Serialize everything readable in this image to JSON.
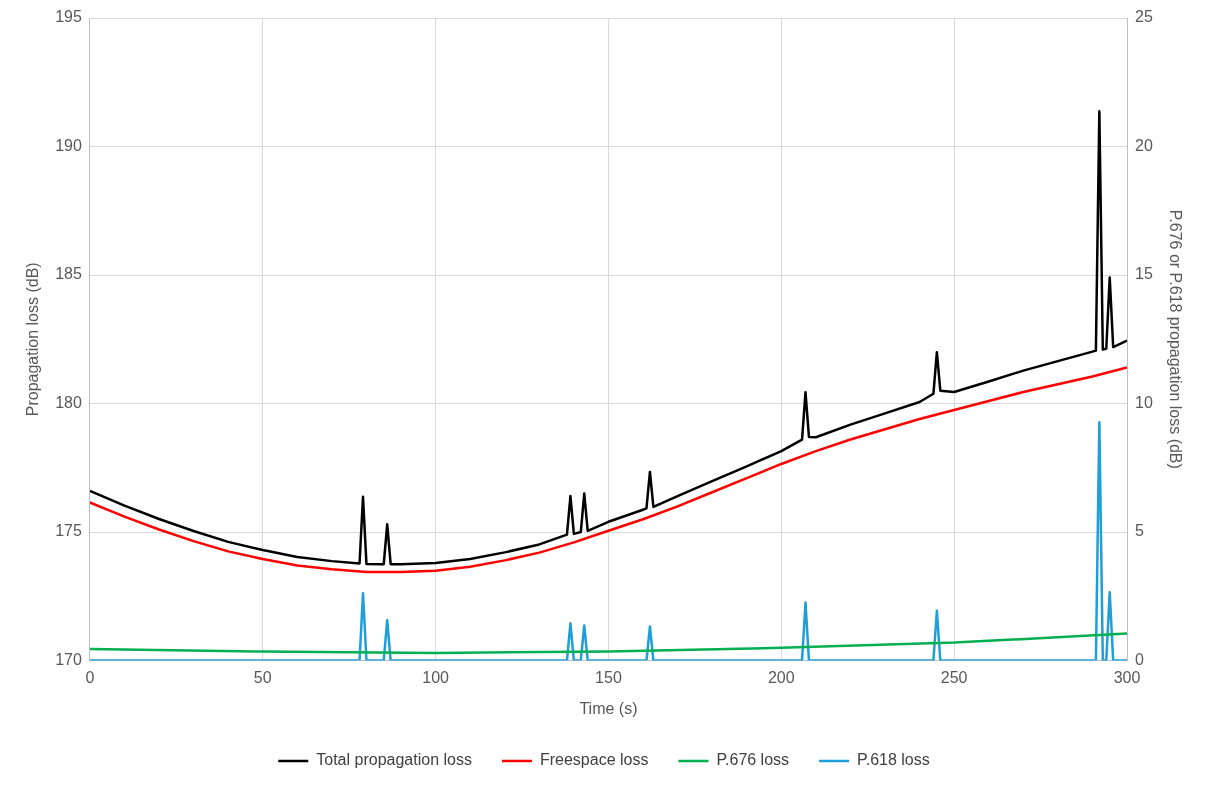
{
  "chart_data": {
    "type": "line",
    "xlabel": "Time (s)",
    "ylabel": "Propagation loss (dB)",
    "y2label": "P.676 or P.618 propagation loss (dB)",
    "xlim": [
      0,
      300
    ],
    "xticks": [
      0,
      50,
      100,
      150,
      200,
      250,
      300
    ],
    "ylim": [
      170,
      195
    ],
    "yticks": [
      170,
      175,
      180,
      185,
      190,
      195
    ],
    "y2lim": [
      0,
      25
    ],
    "y2ticks": [
      0,
      5,
      10,
      15,
      20,
      25
    ],
    "grid": true,
    "legend": "bottom",
    "marker": "none",
    "line_style": "solid",
    "series": [
      {
        "name": "Total propagation loss",
        "color": "#000000",
        "x": [
          0,
          10,
          20,
          30,
          40,
          50,
          60,
          70,
          78,
          79,
          80,
          85,
          86,
          87,
          90,
          100,
          110,
          120,
          130,
          138,
          139,
          140,
          142,
          143,
          144,
          150,
          160,
          161,
          162,
          163,
          170,
          180,
          190,
          200,
          206,
          207,
          208,
          210,
          220,
          230,
          240,
          244,
          245,
          246,
          250,
          260,
          270,
          280,
          290,
          291,
          292,
          293,
          294,
          295,
          296,
          300
        ],
        "values": [
          176.6,
          176.03,
          175.51,
          175.04,
          174.62,
          174.3,
          174.03,
          173.87,
          173.78,
          176.37,
          173.76,
          173.75,
          175.3,
          173.75,
          173.75,
          173.8,
          173.95,
          174.21,
          174.52,
          174.9,
          176.4,
          174.93,
          175.0,
          176.5,
          175.05,
          175.4,
          175.87,
          175.92,
          177.34,
          175.98,
          176.4,
          176.98,
          177.56,
          178.15,
          178.6,
          180.44,
          178.7,
          178.69,
          179.18,
          179.62,
          180.06,
          180.38,
          182.0,
          180.5,
          180.45,
          180.86,
          181.28,
          181.65,
          182.02,
          182.06,
          191.37,
          182.1,
          182.13,
          184.9,
          182.2,
          182.45
        ]
      },
      {
        "name": "Freespace loss",
        "color": "#ff0000",
        "x": [
          0,
          10,
          20,
          30,
          40,
          50,
          60,
          70,
          80,
          90,
          100,
          110,
          120,
          130,
          140,
          150,
          160,
          170,
          180,
          190,
          200,
          210,
          220,
          230,
          240,
          250,
          260,
          270,
          280,
          290,
          300
        ],
        "values": [
          176.15,
          175.6,
          175.1,
          174.65,
          174.25,
          173.95,
          173.7,
          173.55,
          173.45,
          173.45,
          173.5,
          173.65,
          173.9,
          174.2,
          174.6,
          175.05,
          175.5,
          176.0,
          176.55,
          177.1,
          177.65,
          178.15,
          178.6,
          179.0,
          179.4,
          179.75,
          180.1,
          180.45,
          180.75,
          181.05,
          181.4
        ]
      },
      {
        "name": "P.676 loss",
        "color": "#00b050",
        "axis": "y2",
        "x": [
          0,
          50,
          100,
          150,
          200,
          250,
          300
        ],
        "values": [
          0.45,
          0.35,
          0.3,
          0.35,
          0.5,
          0.7,
          1.05
        ]
      },
      {
        "name": "P.618 loss",
        "color": "#1e9fd8",
        "axis": "y2",
        "x": [
          0,
          78,
          79,
          80,
          85,
          86,
          87,
          138,
          139,
          140,
          142,
          143,
          144,
          161,
          162,
          163,
          206,
          207,
          208,
          244,
          245,
          246,
          291,
          292,
          293,
          294,
          295,
          296,
          300
        ],
        "values": [
          0,
          0,
          2.62,
          0,
          0,
          1.57,
          0,
          0,
          1.45,
          0,
          0,
          1.37,
          0,
          0,
          1.33,
          0,
          0,
          2.26,
          0,
          0,
          1.94,
          0,
          0,
          9.27,
          0,
          0,
          2.66,
          0,
          0
        ]
      }
    ]
  }
}
